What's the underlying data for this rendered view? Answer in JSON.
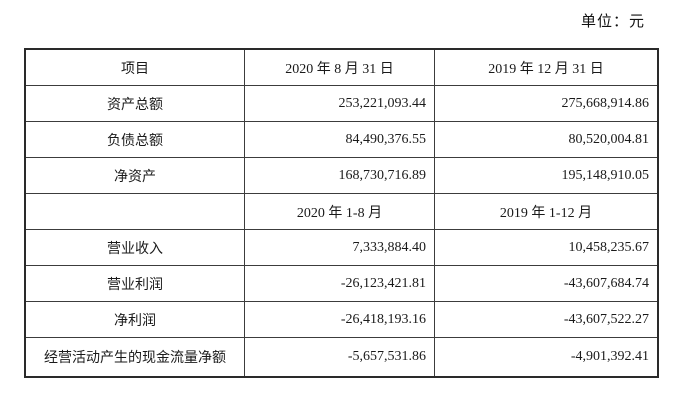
{
  "unit_label": "单位：元",
  "table": {
    "rows": [
      [
        "项目",
        "2020 年 8 月 31 日",
        "2019 年 12 月 31 日"
      ],
      [
        "资产总额",
        "253,221,093.44",
        "275,668,914.86"
      ],
      [
        "负债总额",
        "84,490,376.55",
        "80,520,004.81"
      ],
      [
        "净资产",
        "168,730,716.89",
        "195,148,910.05"
      ],
      [
        "",
        "2020 年 1-8 月",
        "2019 年 1-12 月"
      ],
      [
        "营业收入",
        "7,333,884.40",
        "10,458,235.67"
      ],
      [
        "营业利润",
        "-26,123,421.81",
        "-43,607,684.74"
      ],
      [
        "净利润",
        "-26,418,193.16",
        "-43,607,522.27"
      ],
      [
        "经营活动产生的现金流量净额",
        "-5,657,531.86",
        "-4,901,392.41"
      ]
    ]
  }
}
